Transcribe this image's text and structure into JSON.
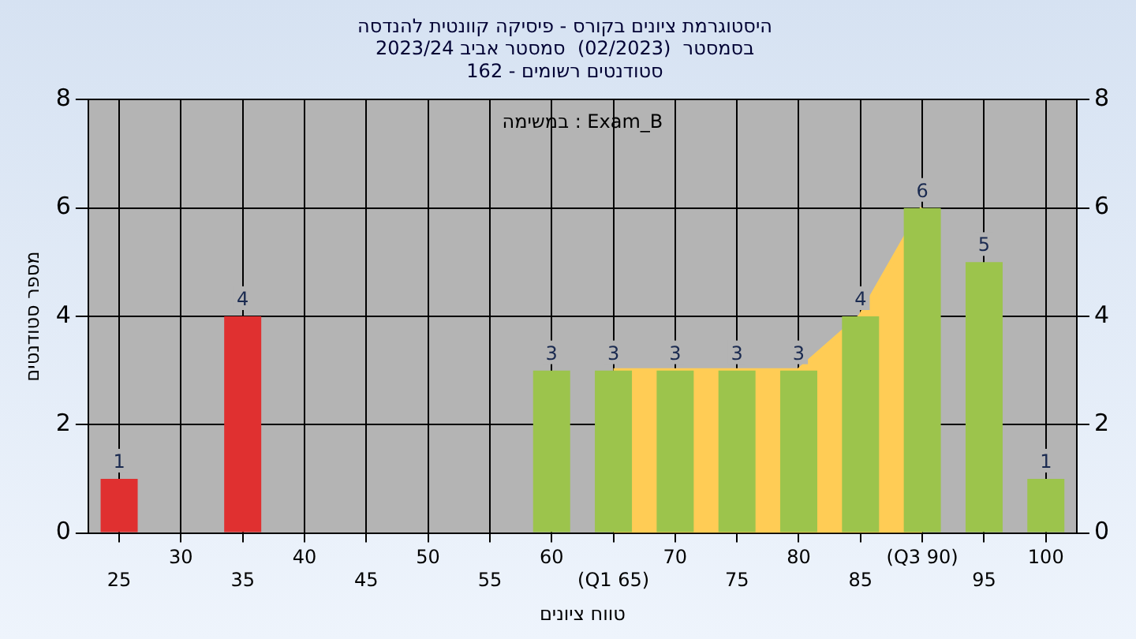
{
  "chart_data": {
    "type": "bar",
    "title": "היסטוגרמת ציונים בקורס - פיסיקה קוונטית להנדסה",
    "subtitle": "בסמסטר  (02/2023)  סמסטר אביב 2023/24\nסטודנטים רשומים - 162",
    "xlabel": "טווח ציונים",
    "ylabel": "מספר סטודנטים",
    "annotations": [
      "במשימה : Exam_B"
    ],
    "categories": [
      "25",
      "30",
      "35",
      "40",
      "45",
      "50",
      "55",
      "60",
      "(Q1 65)",
      "70",
      "75",
      "80",
      "85",
      "(Q3 90)",
      "95",
      "100"
    ],
    "series": [
      {
        "type": "area",
        "color": "#ffcc55",
        "values": [
          null,
          null,
          null,
          null,
          null,
          null,
          null,
          null,
          3,
          3,
          3,
          3,
          4,
          6,
          null,
          null
        ]
      },
      {
        "value_labels": [
          "1",
          null,
          "4",
          null,
          null,
          null,
          null,
          "3",
          "3",
          "3",
          "3",
          "3",
          "4",
          "6",
          "5",
          "1"
        ],
        "colors": [
          "#e03030",
          "#e03030",
          "#e03030",
          "#e03030",
          "#e03030",
          "#e03030",
          "#e03030",
          "#9cc44c",
          "#9cc44c",
          "#9cc44c",
          "#9cc44c",
          "#9cc44c",
          "#9cc44c",
          "#9cc44c",
          "#9cc44c",
          "#9cc44c"
        ],
        "values": [
          1,
          null,
          4,
          null,
          null,
          null,
          null,
          3,
          3,
          3,
          3,
          3,
          4,
          6,
          5,
          1
        ]
      }
    ],
    "ylim": [
      0,
      8
    ],
    "yticks": [
      0,
      2,
      4,
      6,
      8
    ],
    "y2lim": [
      0,
      8
    ],
    "y2ticks": [
      0,
      2,
      4,
      6,
      8
    ],
    "grid": true,
    "legend": false
  }
}
